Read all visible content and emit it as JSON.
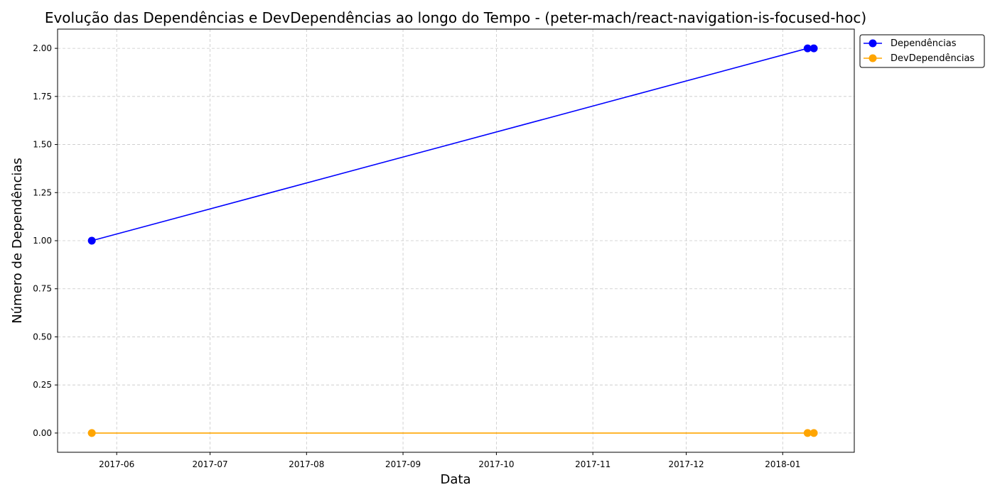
{
  "chart_data": {
    "type": "line",
    "title": "Evolução das Dependências e DevDependências ao longo do Tempo - (peter-mach/react-navigation-is-focused-hoc)",
    "xlabel": "Data",
    "ylabel": "Número de Dependências",
    "x_type": "date",
    "xlim": [
      "2017-05-13",
      "2018-01-24"
    ],
    "ylim": [
      -0.1,
      2.1
    ],
    "x_ticks": [
      "2017-06-01",
      "2017-07-01",
      "2017-08-01",
      "2017-09-01",
      "2017-10-01",
      "2017-11-01",
      "2017-12-01",
      "2018-01-01"
    ],
    "x_tick_labels": [
      "2017-06",
      "2017-07",
      "2017-08",
      "2017-09",
      "2017-10",
      "2017-11",
      "2017-12",
      "2018-01"
    ],
    "y_ticks": [
      0,
      0.25,
      0.5,
      0.75,
      1.0,
      1.25,
      1.5,
      1.75,
      2.0
    ],
    "y_tick_labels": [
      "0.00",
      "0.25",
      "0.50",
      "0.75",
      "1.00",
      "1.25",
      "1.50",
      "1.75",
      "2.00"
    ],
    "x": [
      "2017-05-24",
      "2018-01-09",
      "2018-01-11"
    ],
    "series": [
      {
        "name": "Dependências",
        "values": [
          1,
          2,
          2
        ],
        "color": "#0000ff"
      },
      {
        "name": "DevDependências",
        "values": [
          0,
          0,
          0
        ],
        "color": "#ffa500"
      }
    ],
    "grid": true,
    "grid_style": "dashed",
    "legend_position": "outside-top-right"
  }
}
